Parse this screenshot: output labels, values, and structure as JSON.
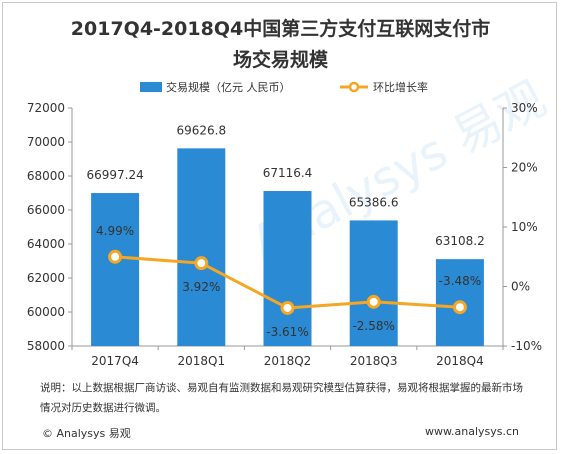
{
  "title_line1": "2017Q4-2018Q4中国第三方支付互联网支付市",
  "title_line2": "场交易规模",
  "note": "说明：以上数据根据厂商访谈、易观自有监测数据和易观研究模型估算获得，易观将根据掌握的最新市场情况对历史数据进行微调。",
  "footer_left": "© Analysys 易观",
  "footer_right": "www.analysys.cn",
  "watermark_text": "Analysys 易观",
  "colors": {
    "bar": "#2a8ad3",
    "line": "#f5a623",
    "marker_fill": "#ffffff",
    "axis": "#999999"
  },
  "chart_data": {
    "type": "bar",
    "categories": [
      "2017Q4",
      "2018Q1",
      "2018Q2",
      "2018Q3",
      "2018Q4"
    ],
    "series": [
      {
        "name": "交易规模（亿元 人民币）",
        "type": "bar",
        "axis": "left",
        "values": [
          66997.24,
          69626.8,
          67116.4,
          65386.6,
          63108.2
        ],
        "labels": [
          "66997.24",
          "69626.8",
          "67116.4",
          "65386.6",
          "63108.2"
        ]
      },
      {
        "name": "环比增长率",
        "type": "line",
        "axis": "right",
        "values": [
          4.99,
          3.92,
          -3.61,
          -2.58,
          -3.48
        ],
        "labels": [
          "4.99%",
          "3.92%",
          "-3.61%",
          "-2.58%",
          "-3.48%"
        ]
      }
    ],
    "ylim_left": [
      58000,
      72000
    ],
    "yticks_left": [
      "72000",
      "70000",
      "68000",
      "66000",
      "64000",
      "62000",
      "60000",
      "58000"
    ],
    "ylim_right": [
      -10,
      30
    ],
    "yticks_right": [
      "30%",
      "20%",
      "10%",
      "0%",
      "-10%"
    ],
    "legend_position": "top"
  }
}
